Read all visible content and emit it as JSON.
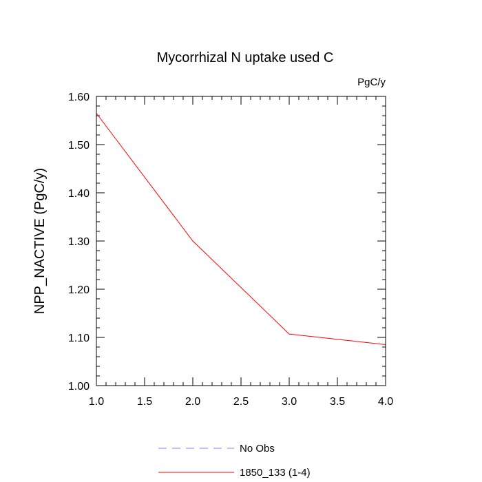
{
  "chart_data": {
    "type": "line",
    "title": "Mycorrhizal N uptake used C",
    "units_label": "PgC/y",
    "ylabel": "NPP_NACTIVE  (PgC/y)",
    "xlabel": "",
    "xlim": [
      1.0,
      4.0
    ],
    "ylim": [
      1.0,
      1.6
    ],
    "xticks": [
      "1.0",
      "1.5",
      "2.0",
      "2.5",
      "3.0",
      "3.5",
      "4.0"
    ],
    "yticks": [
      "1.00",
      "1.10",
      "1.20",
      "1.30",
      "1.40",
      "1.50",
      "1.60"
    ],
    "grid": false,
    "legend_position": "bottom",
    "series": [
      {
        "name": "1850_133 (1-4)",
        "color": "#ff0000",
        "dash": "solid",
        "x": [
          1.0,
          2.0,
          3.0,
          4.0
        ],
        "y": [
          1.565,
          1.3,
          1.107,
          1.085
        ]
      }
    ],
    "legend": [
      {
        "label": "No Obs",
        "color": "#8080ff",
        "dash": "dashed"
      },
      {
        "label": "1850_133 (1-4)",
        "color": "#ff0000",
        "dash": "solid"
      }
    ]
  }
}
